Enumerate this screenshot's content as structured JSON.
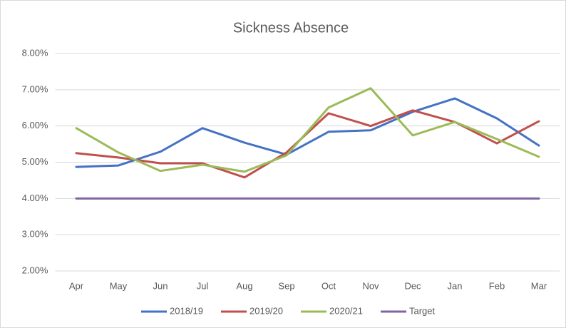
{
  "chart_data": {
    "type": "line",
    "title": "Sickness Absence",
    "categories": [
      "Apr",
      "May",
      "Jun",
      "Jul",
      "Aug",
      "Sep",
      "Oct",
      "Nov",
      "Dec",
      "Jan",
      "Feb",
      "Mar"
    ],
    "series": [
      {
        "name": "2018/19",
        "color": "#4472c4",
        "values": [
          4.87,
          4.91,
          5.29,
          5.94,
          5.54,
          5.21,
          5.84,
          5.88,
          6.39,
          6.76,
          6.21,
          5.46
        ]
      },
      {
        "name": "2019/20",
        "color": "#c0504d",
        "values": [
          5.25,
          5.13,
          4.97,
          4.97,
          4.58,
          5.27,
          6.35,
          6.0,
          6.43,
          6.11,
          5.52,
          6.13
        ]
      },
      {
        "name": "2020/21",
        "color": "#9bbb59",
        "values": [
          5.94,
          5.27,
          4.76,
          4.93,
          4.74,
          5.19,
          6.51,
          7.04,
          5.74,
          6.11,
          5.64,
          5.15
        ]
      },
      {
        "name": "Target",
        "color": "#8064a2",
        "values": [
          4,
          4,
          4,
          4,
          4,
          4,
          4,
          4,
          4,
          4,
          4,
          4
        ]
      }
    ],
    "ylim": [
      2,
      8
    ],
    "yticks": [
      {
        "value": 2,
        "label": "2.00%"
      },
      {
        "value": 3,
        "label": "3.00%"
      },
      {
        "value": 4,
        "label": "4.00%"
      },
      {
        "value": 5,
        "label": "5.00%"
      },
      {
        "value": 6,
        "label": "6.00%"
      },
      {
        "value": 7,
        "label": "7.00%"
      },
      {
        "value": 8,
        "label": "8.00%"
      }
    ],
    "grid": true,
    "legend": "bottom"
  }
}
